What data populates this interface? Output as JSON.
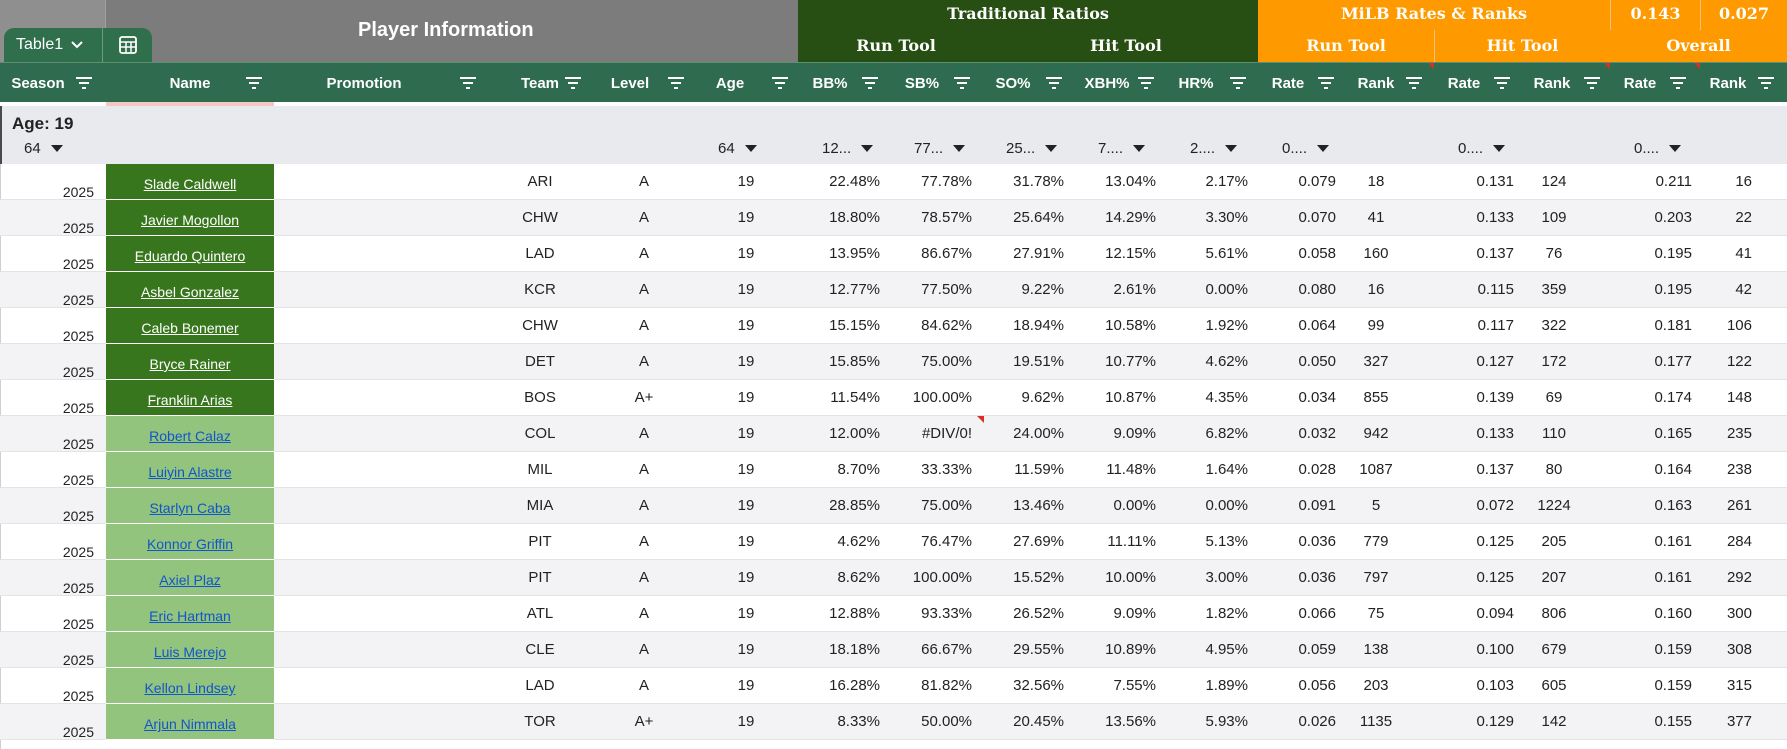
{
  "table_chip": {
    "label": "Table1",
    "chevron_icon": "chevron-down-icon",
    "icon": "table-grid-icon"
  },
  "header": {
    "player_info": "Player Information",
    "traditional_ratios": "Traditional Ratios",
    "milb_rates_ranks": "MiLB Rates & Ranks",
    "summary_value_1": "0.143",
    "summary_value_2": "0.027",
    "trad_run_tool": "Run Tool",
    "trad_hit_tool": "Hit Tool",
    "milb_run_tool": "Run Tool",
    "milb_hit_tool": "Hit Tool",
    "milb_overall": "Overall"
  },
  "columns": [
    {
      "key": "season",
      "label": "Season"
    },
    {
      "key": "name",
      "label": "Name"
    },
    {
      "key": "promotion",
      "label": "Promotion"
    },
    {
      "key": "team",
      "label": "Team"
    },
    {
      "key": "level",
      "label": "Level"
    },
    {
      "key": "age",
      "label": "Age"
    },
    {
      "key": "bb",
      "label": "BB%"
    },
    {
      "key": "sb",
      "label": "SB%"
    },
    {
      "key": "so",
      "label": "SO%"
    },
    {
      "key": "xbh",
      "label": "XBH%"
    },
    {
      "key": "hr",
      "label": "HR%"
    },
    {
      "key": "run_rate",
      "label": "Rate"
    },
    {
      "key": "run_rank",
      "label": "Rank"
    },
    {
      "key": "hit_rate",
      "label": "Rate"
    },
    {
      "key": "hit_rank",
      "label": "Rank"
    },
    {
      "key": "ovr_rate",
      "label": "Rate"
    },
    {
      "key": "ovr_rank",
      "label": "Rank"
    }
  ],
  "group": {
    "title": "Age: 19",
    "count": "64",
    "age_agg": "64",
    "bb_agg": "12...",
    "sb_agg": "77...",
    "so_agg": "25...",
    "xbh_agg": "7....",
    "hr_agg": "2....",
    "run_rate_agg": "0....",
    "hit_rate_agg": "0....",
    "ovr_rate_agg": "0...."
  },
  "rows": [
    {
      "season": "2025",
      "name": "Slade Caldwell",
      "tier": 1,
      "team": "ARI",
      "level": "A",
      "age": "19",
      "bb": "22.48%",
      "sb": "77.78%",
      "so": "31.78%",
      "xbh": "13.04%",
      "hr": "2.17%",
      "run_rate": "0.079",
      "run_rank": "18",
      "hit_rate": "0.131",
      "hit_rank": "124",
      "ovr_rate": "0.211",
      "ovr_rank": "16"
    },
    {
      "season": "2025",
      "name": "Javier Mogollon",
      "tier": 1,
      "team": "CHW",
      "level": "A",
      "age": "19",
      "bb": "18.80%",
      "sb": "78.57%",
      "so": "25.64%",
      "xbh": "14.29%",
      "hr": "3.30%",
      "run_rate": "0.070",
      "run_rank": "41",
      "hit_rate": "0.133",
      "hit_rank": "109",
      "ovr_rate": "0.203",
      "ovr_rank": "22"
    },
    {
      "season": "2025",
      "name": "Eduardo Quintero",
      "tier": 1,
      "team": "LAD",
      "level": "A",
      "age": "19",
      "bb": "13.95%",
      "sb": "86.67%",
      "so": "27.91%",
      "xbh": "12.15%",
      "hr": "5.61%",
      "run_rate": "0.058",
      "run_rank": "160",
      "hit_rate": "0.137",
      "hit_rank": "76",
      "ovr_rate": "0.195",
      "ovr_rank": "41"
    },
    {
      "season": "2025",
      "name": "Asbel Gonzalez",
      "tier": 1,
      "team": "KCR",
      "level": "A",
      "age": "19",
      "bb": "12.77%",
      "sb": "77.50%",
      "so": "9.22%",
      "xbh": "2.61%",
      "hr": "0.00%",
      "run_rate": "0.080",
      "run_rank": "16",
      "hit_rate": "0.115",
      "hit_rank": "359",
      "ovr_rate": "0.195",
      "ovr_rank": "42"
    },
    {
      "season": "2025",
      "name": "Caleb Bonemer",
      "tier": 1,
      "team": "CHW",
      "level": "A",
      "age": "19",
      "bb": "15.15%",
      "sb": "84.62%",
      "so": "18.94%",
      "xbh": "10.58%",
      "hr": "1.92%",
      "run_rate": "0.064",
      "run_rank": "99",
      "hit_rate": "0.117",
      "hit_rank": "322",
      "ovr_rate": "0.181",
      "ovr_rank": "106"
    },
    {
      "season": "2025",
      "name": "Bryce Rainer",
      "tier": 1,
      "team": "DET",
      "level": "A",
      "age": "19",
      "bb": "15.85%",
      "sb": "75.00%",
      "so": "19.51%",
      "xbh": "10.77%",
      "hr": "4.62%",
      "run_rate": "0.050",
      "run_rank": "327",
      "hit_rate": "0.127",
      "hit_rank": "172",
      "ovr_rate": "0.177",
      "ovr_rank": "122"
    },
    {
      "season": "2025",
      "name": "Franklin Arias",
      "tier": 1,
      "team": "BOS",
      "level": "A+",
      "age": "19",
      "bb": "11.54%",
      "sb": "100.00%",
      "so": "9.62%",
      "xbh": "10.87%",
      "hr": "4.35%",
      "run_rate": "0.034",
      "run_rank": "855",
      "hit_rate": "0.139",
      "hit_rank": "69",
      "ovr_rate": "0.174",
      "ovr_rank": "148"
    },
    {
      "season": "2025",
      "name": "Robert Calaz",
      "tier": 2,
      "team": "COL",
      "level": "A",
      "age": "19",
      "bb": "12.00%",
      "sb": "#DIV/0!",
      "sb_flag": true,
      "so": "24.00%",
      "xbh": "9.09%",
      "hr": "6.82%",
      "run_rate": "0.032",
      "run_rank": "942",
      "hit_rate": "0.133",
      "hit_rank": "110",
      "ovr_rate": "0.165",
      "ovr_rank": "235"
    },
    {
      "season": "2025",
      "name": "Luiyin Alastre",
      "tier": 2,
      "team": "MIL",
      "level": "A",
      "age": "19",
      "bb": "8.70%",
      "sb": "33.33%",
      "so": "11.59%",
      "xbh": "11.48%",
      "hr": "1.64%",
      "run_rate": "0.028",
      "run_rank": "1087",
      "hit_rate": "0.137",
      "hit_rank": "80",
      "ovr_rate": "0.164",
      "ovr_rank": "238"
    },
    {
      "season": "2025",
      "name": "Starlyn Caba",
      "tier": 2,
      "team": "MIA",
      "level": "A",
      "age": "19",
      "bb": "28.85%",
      "sb": "75.00%",
      "so": "13.46%",
      "xbh": "0.00%",
      "hr": "0.00%",
      "run_rate": "0.091",
      "run_rank": "5",
      "hit_rate": "0.072",
      "hit_rank": "1224",
      "ovr_rate": "0.163",
      "ovr_rank": "261"
    },
    {
      "season": "2025",
      "name": "Konnor Griffin",
      "tier": 2,
      "team": "PIT",
      "level": "A",
      "age": "19",
      "bb": "4.62%",
      "sb": "76.47%",
      "so": "27.69%",
      "xbh": "11.11%",
      "hr": "5.13%",
      "run_rate": "0.036",
      "run_rank": "779",
      "hit_rate": "0.125",
      "hit_rank": "205",
      "ovr_rate": "0.161",
      "ovr_rank": "284"
    },
    {
      "season": "2025",
      "name": "Axiel Plaz",
      "tier": 2,
      "team": "PIT",
      "level": "A",
      "age": "19",
      "bb": "8.62%",
      "sb": "100.00%",
      "so": "15.52%",
      "xbh": "10.00%",
      "hr": "3.00%",
      "run_rate": "0.036",
      "run_rank": "797",
      "hit_rate": "0.125",
      "hit_rank": "207",
      "ovr_rate": "0.161",
      "ovr_rank": "292"
    },
    {
      "season": "2025",
      "name": "Eric Hartman",
      "tier": 2,
      "team": "ATL",
      "level": "A",
      "age": "19",
      "bb": "12.88%",
      "sb": "93.33%",
      "so": "26.52%",
      "xbh": "9.09%",
      "hr": "1.82%",
      "run_rate": "0.066",
      "run_rank": "75",
      "hit_rate": "0.094",
      "hit_rank": "806",
      "ovr_rate": "0.160",
      "ovr_rank": "300"
    },
    {
      "season": "2025",
      "name": "Luis Merejo",
      "tier": 2,
      "team": "CLE",
      "level": "A",
      "age": "19",
      "bb": "18.18%",
      "sb": "66.67%",
      "so": "29.55%",
      "xbh": "10.89%",
      "hr": "4.95%",
      "run_rate": "0.059",
      "run_rank": "138",
      "hit_rate": "0.100",
      "hit_rank": "679",
      "ovr_rate": "0.159",
      "ovr_rank": "308"
    },
    {
      "season": "2025",
      "name": "Kellon Lindsey",
      "tier": 2,
      "team": "LAD",
      "level": "A",
      "age": "19",
      "bb": "16.28%",
      "sb": "81.82%",
      "so": "32.56%",
      "xbh": "7.55%",
      "hr": "1.89%",
      "run_rate": "0.056",
      "run_rank": "203",
      "hit_rate": "0.103",
      "hit_rank": "605",
      "ovr_rate": "0.159",
      "ovr_rank": "315"
    },
    {
      "season": "2025",
      "name": "Arjun Nimmala",
      "tier": 2,
      "team": "TOR",
      "level": "A+",
      "age": "19",
      "bb": "8.33%",
      "sb": "50.00%",
      "so": "20.45%",
      "xbh": "13.56%",
      "hr": "5.93%",
      "run_rate": "0.026",
      "run_rank": "1135",
      "hit_rate": "0.129",
      "hit_rank": "142",
      "ovr_rate": "0.155",
      "ovr_rank": "377"
    }
  ],
  "colors": {
    "trad_band": "#274e13",
    "milb_band": "#ff9900",
    "column_header": "#2e6b4f",
    "name_tier1": "#38761d",
    "name_tier2": "#93c47d",
    "error_flag": "#d93025"
  }
}
